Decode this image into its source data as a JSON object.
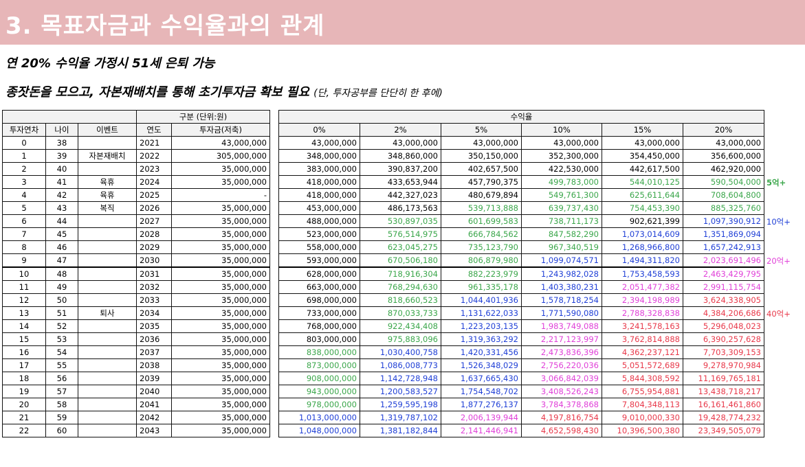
{
  "banner": {
    "title": "3. 목표자금과 수익율과의 관계"
  },
  "headline1": "연 20% 수익율 가정시 51세 은퇴 가능",
  "headline2": "종잣돈을 모으고, 자본재배치를 통해 초기투자금 확보 필요",
  "headline2_note": "(단, 투자공부를 단단히 한 후에)",
  "left_table": {
    "group_header": "구분 (단위:원)",
    "columns": [
      "투자연차",
      "나이",
      "이벤트",
      "연도",
      "투자금(저축)"
    ],
    "rows": [
      [
        "0",
        "38",
        "",
        "2021",
        "43,000,000"
      ],
      [
        "1",
        "39",
        "자본재배치",
        "2022",
        "305,000,000"
      ],
      [
        "2",
        "40",
        "",
        "2023",
        "35,000,000"
      ],
      [
        "3",
        "41",
        "육휴",
        "2024",
        "35,000,000"
      ],
      [
        "4",
        "42",
        "육휴",
        "2025",
        "-"
      ],
      [
        "5",
        "43",
        "복직",
        "2026",
        "35,000,000"
      ],
      [
        "6",
        "44",
        "",
        "2027",
        "35,000,000"
      ],
      [
        "7",
        "45",
        "",
        "2028",
        "35,000,000"
      ],
      [
        "8",
        "46",
        "",
        "2029",
        "35,000,000"
      ],
      [
        "9",
        "47",
        "",
        "2030",
        "35,000,000"
      ],
      [
        "10",
        "48",
        "",
        "2031",
        "35,000,000"
      ],
      [
        "11",
        "49",
        "",
        "2032",
        "35,000,000"
      ],
      [
        "12",
        "50",
        "",
        "2033",
        "35,000,000"
      ],
      [
        "13",
        "51",
        "퇴사",
        "2034",
        "35,000,000"
      ],
      [
        "14",
        "52",
        "",
        "2035",
        "35,000,000"
      ],
      [
        "15",
        "53",
        "",
        "2036",
        "35,000,000"
      ],
      [
        "16",
        "54",
        "",
        "2037",
        "35,000,000"
      ],
      [
        "17",
        "55",
        "",
        "2038",
        "35,000,000"
      ],
      [
        "18",
        "56",
        "",
        "2039",
        "35,000,000"
      ],
      [
        "19",
        "57",
        "",
        "2040",
        "35,000,000"
      ],
      [
        "20",
        "58",
        "",
        "2041",
        "35,000,000"
      ],
      [
        "21",
        "59",
        "",
        "2042",
        "35,000,000"
      ],
      [
        "22",
        "60",
        "",
        "2043",
        "35,000,000"
      ]
    ]
  },
  "right_table": {
    "group_header": "수익율",
    "columns": [
      "0%",
      "2%",
      "5%",
      "10%",
      "15%",
      "20%"
    ],
    "colors": {
      "k": "#000000",
      "g": "#3aa64a",
      "b": "#1f3fd6",
      "m": "#e040d8",
      "r": "#e8394a"
    },
    "rows": [
      [
        "43,000,000",
        "43,000,000",
        "43,000,000",
        "43,000,000",
        "43,000,000",
        "43,000,000"
      ],
      [
        "348,000,000",
        "348,860,000",
        "350,150,000",
        "352,300,000",
        "354,450,000",
        "356,600,000"
      ],
      [
        "383,000,000",
        "390,837,200",
        "402,657,500",
        "422,530,000",
        "442,617,500",
        "462,920,000"
      ],
      [
        "418,000,000",
        "433,653,944",
        "457,790,375",
        "499,783,000",
        "544,010,125",
        "590,504,000"
      ],
      [
        "418,000,000",
        "442,327,023",
        "480,679,894",
        "549,761,300",
        "625,611,644",
        "708,604,800"
      ],
      [
        "453,000,000",
        "486,173,563",
        "539,713,888",
        "639,737,430",
        "754,453,390",
        "885,325,760"
      ],
      [
        "488,000,000",
        "530,897,035",
        "601,699,583",
        "738,711,173",
        "902,621,399",
        "1,097,390,912"
      ],
      [
        "523,000,000",
        "576,514,975",
        "666,784,562",
        "847,582,290",
        "1,073,014,609",
        "1,351,869,094"
      ],
      [
        "558,000,000",
        "623,045,275",
        "735,123,790",
        "967,340,519",
        "1,268,966,800",
        "1,657,242,913"
      ],
      [
        "593,000,000",
        "670,506,180",
        "806,879,980",
        "1,099,074,571",
        "1,494,311,820",
        "2,023,691,496"
      ],
      [
        "628,000,000",
        "718,916,304",
        "882,223,979",
        "1,243,982,028",
        "1,753,458,593",
        "2,463,429,795"
      ],
      [
        "663,000,000",
        "768,294,630",
        "961,335,178",
        "1,403,380,231",
        "2,051,477,382",
        "2,991,115,754"
      ],
      [
        "698,000,000",
        "818,660,523",
        "1,044,401,936",
        "1,578,718,254",
        "2,394,198,989",
        "3,624,338,905"
      ],
      [
        "733,000,000",
        "870,033,733",
        "1,131,622,033",
        "1,771,590,080",
        "2,788,328,838",
        "4,384,206,686"
      ],
      [
        "768,000,000",
        "922,434,408",
        "1,223,203,135",
        "1,983,749,088",
        "3,241,578,163",
        "5,296,048,023"
      ],
      [
        "803,000,000",
        "975,883,096",
        "1,319,363,292",
        "2,217,123,997",
        "3,762,814,888",
        "6,390,257,628"
      ],
      [
        "838,000,000",
        "1,030,400,758",
        "1,420,331,456",
        "2,473,836,396",
        "4,362,237,121",
        "7,703,309,153"
      ],
      [
        "873,000,000",
        "1,086,008,773",
        "1,526,348,029",
        "2,756,220,036",
        "5,051,572,689",
        "9,278,970,984"
      ],
      [
        "908,000,000",
        "1,142,728,948",
        "1,637,665,430",
        "3,066,842,039",
        "5,844,308,592",
        "11,169,765,181"
      ],
      [
        "943,000,000",
        "1,200,583,527",
        "1,754,548,702",
        "3,408,526,243",
        "6,755,954,881",
        "13,438,718,217"
      ],
      [
        "978,000,000",
        "1,259,595,198",
        "1,877,276,137",
        "3,784,378,868",
        "7,804,348,113",
        "16,161,461,860"
      ],
      [
        "1,013,000,000",
        "1,319,787,102",
        "2,006,139,944",
        "4,197,816,754",
        "9,010,000,330",
        "19,428,774,232"
      ],
      [
        "1,048,000,000",
        "1,381,182,844",
        "2,141,446,941",
        "4,652,598,430",
        "10,396,500,380",
        "23,349,505,079"
      ]
    ],
    "cell_color_codes": [
      "kkkkkk",
      "kkkkkk",
      "kkkkkk",
      "kkkggg",
      "kkkggg",
      "kkgggg",
      "kgggkb",
      "kgggbb",
      "kgggbb",
      "kggbbm",
      "kggbbm",
      "kggbmm",
      "kgbbmr",
      "kgbbmr",
      "kgbmrr",
      "kgbmrr",
      "gbbmrr",
      "gbbmrr",
      "gbbmrr",
      "gbbmrr",
      "gbbmrr",
      "bbmrrr",
      "bbmrrr"
    ]
  },
  "markers": [
    {
      "label": "5억+",
      "row": 3,
      "color": "#3aa64a",
      "bold": true
    },
    {
      "label": "10억+",
      "row": 6,
      "color": "#1f3fd6",
      "bold": false
    },
    {
      "label": "20억+",
      "row": 9,
      "color": "#e040d8",
      "bold": false
    },
    {
      "label": "40억+",
      "row": 13,
      "color": "#e8394a",
      "bold": false
    }
  ]
}
